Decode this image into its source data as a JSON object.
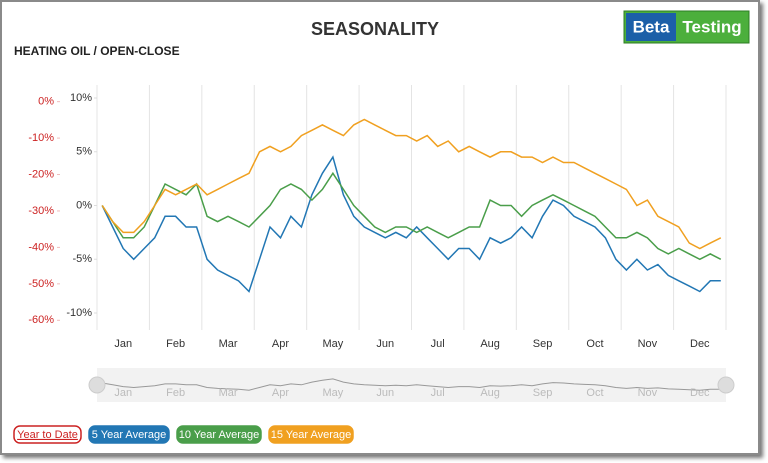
{
  "chart_data": {
    "type": "line",
    "title": "SEASONALITY",
    "subtitle": "HEATING OIL / OPEN-CLOSE",
    "logo": [
      "Beta",
      "Testing"
    ],
    "categories": [
      null,
      null,
      "Jan",
      null,
      null,
      null,
      null,
      "Feb",
      null,
      null,
      null,
      null,
      "Mar",
      null,
      null,
      null,
      null,
      "Apr",
      null,
      null,
      null,
      null,
      "May",
      null,
      null,
      null,
      null,
      "Jun",
      null,
      null,
      null,
      null,
      "Jul",
      null,
      null,
      null,
      null,
      "Aug",
      null,
      null,
      null,
      null,
      "Sep",
      null,
      null,
      null,
      null,
      "Oct",
      null,
      null,
      null,
      null,
      "Nov",
      null,
      null,
      null,
      null,
      "Dec",
      null,
      null
    ],
    "ylim": [
      -10,
      10
    ],
    "yticks": [
      {
        "value": 10,
        "label": "10%"
      },
      {
        "value": 5,
        "label": "5%"
      },
      {
        "value": 0,
        "label": "0%"
      },
      {
        "value": -5,
        "label": "-5%"
      },
      {
        "value": -10,
        "label": "-10%"
      }
    ],
    "y2lim": [
      -58,
      1
    ],
    "y2ticks": [
      {
        "value": 0,
        "label": "0%"
      },
      {
        "value": -10,
        "label": "-10%"
      },
      {
        "value": -20,
        "label": "-20%"
      },
      {
        "value": -30,
        "label": "-30%"
      },
      {
        "value": -40,
        "label": "-40%"
      },
      {
        "value": -50,
        "label": "-50%"
      },
      {
        "value": -60,
        "label": "-60%"
      }
    ],
    "y2color": "#cc2222",
    "series": [
      {
        "name": "Year to Date",
        "color": "#cc2222",
        "axis": "y2",
        "visible": false
      },
      {
        "name": "5 Year Average",
        "color": "#2277b4",
        "values": [
          0,
          -2,
          -4,
          -5,
          -4,
          -3,
          -1,
          -1,
          -2,
          -2,
          -5,
          -6,
          -6.5,
          -7,
          -8,
          -5,
          -2,
          -3,
          -1,
          -2,
          1,
          3,
          4.5,
          1,
          -1,
          -2,
          -2.5,
          -3,
          -2.5,
          -3,
          -2,
          -3,
          -4,
          -5,
          -4,
          -4,
          -5,
          -3,
          -3.5,
          -3,
          -2,
          -3,
          -1,
          0.5,
          0,
          -1,
          -1.5,
          -2,
          -3,
          -5,
          -6,
          -5,
          -6,
          -5.5,
          -6.5,
          -7,
          -7.5,
          -8,
          -7,
          -7
        ]
      },
      {
        "name": "10 Year Average",
        "color": "#4a9e4a",
        "values": [
          0,
          -1.5,
          -3,
          -3,
          -2,
          0,
          2,
          1.5,
          1,
          2,
          -1,
          -1.5,
          -1,
          -1.5,
          -2,
          -1,
          0,
          1.5,
          2,
          1.5,
          0.5,
          1.5,
          3,
          1.5,
          0,
          -1,
          -2,
          -2.5,
          -2,
          -2,
          -2.5,
          -2,
          -2.5,
          -3,
          -2.5,
          -2,
          -2,
          0.5,
          0,
          0,
          -1,
          0,
          0.5,
          1,
          0.5,
          0,
          -0.5,
          -1,
          -2,
          -3,
          -3,
          -2.5,
          -3,
          -4,
          -4.5,
          -4,
          -4.5,
          -5,
          -4.5,
          -5
        ]
      },
      {
        "name": "15 Year Average",
        "color": "#f0a020",
        "values": [
          0,
          -1.5,
          -2.5,
          -2.5,
          -1.5,
          0,
          1.5,
          1,
          1.5,
          2,
          1,
          1.5,
          2,
          2.5,
          3,
          5,
          5.5,
          5,
          5.5,
          6.5,
          7,
          7.5,
          7,
          6.5,
          7.5,
          8,
          7.5,
          7,
          6.5,
          6.5,
          6,
          6.5,
          5.5,
          6,
          5,
          5.5,
          5,
          4.5,
          5,
          5,
          4.5,
          4.5,
          4,
          4.5,
          4,
          4,
          3.5,
          3,
          2.5,
          2,
          1.5,
          0,
          0.5,
          -1,
          -1.5,
          -2,
          -3.5,
          -4,
          -3.5,
          -3
        ]
      }
    ],
    "navigator": true
  }
}
